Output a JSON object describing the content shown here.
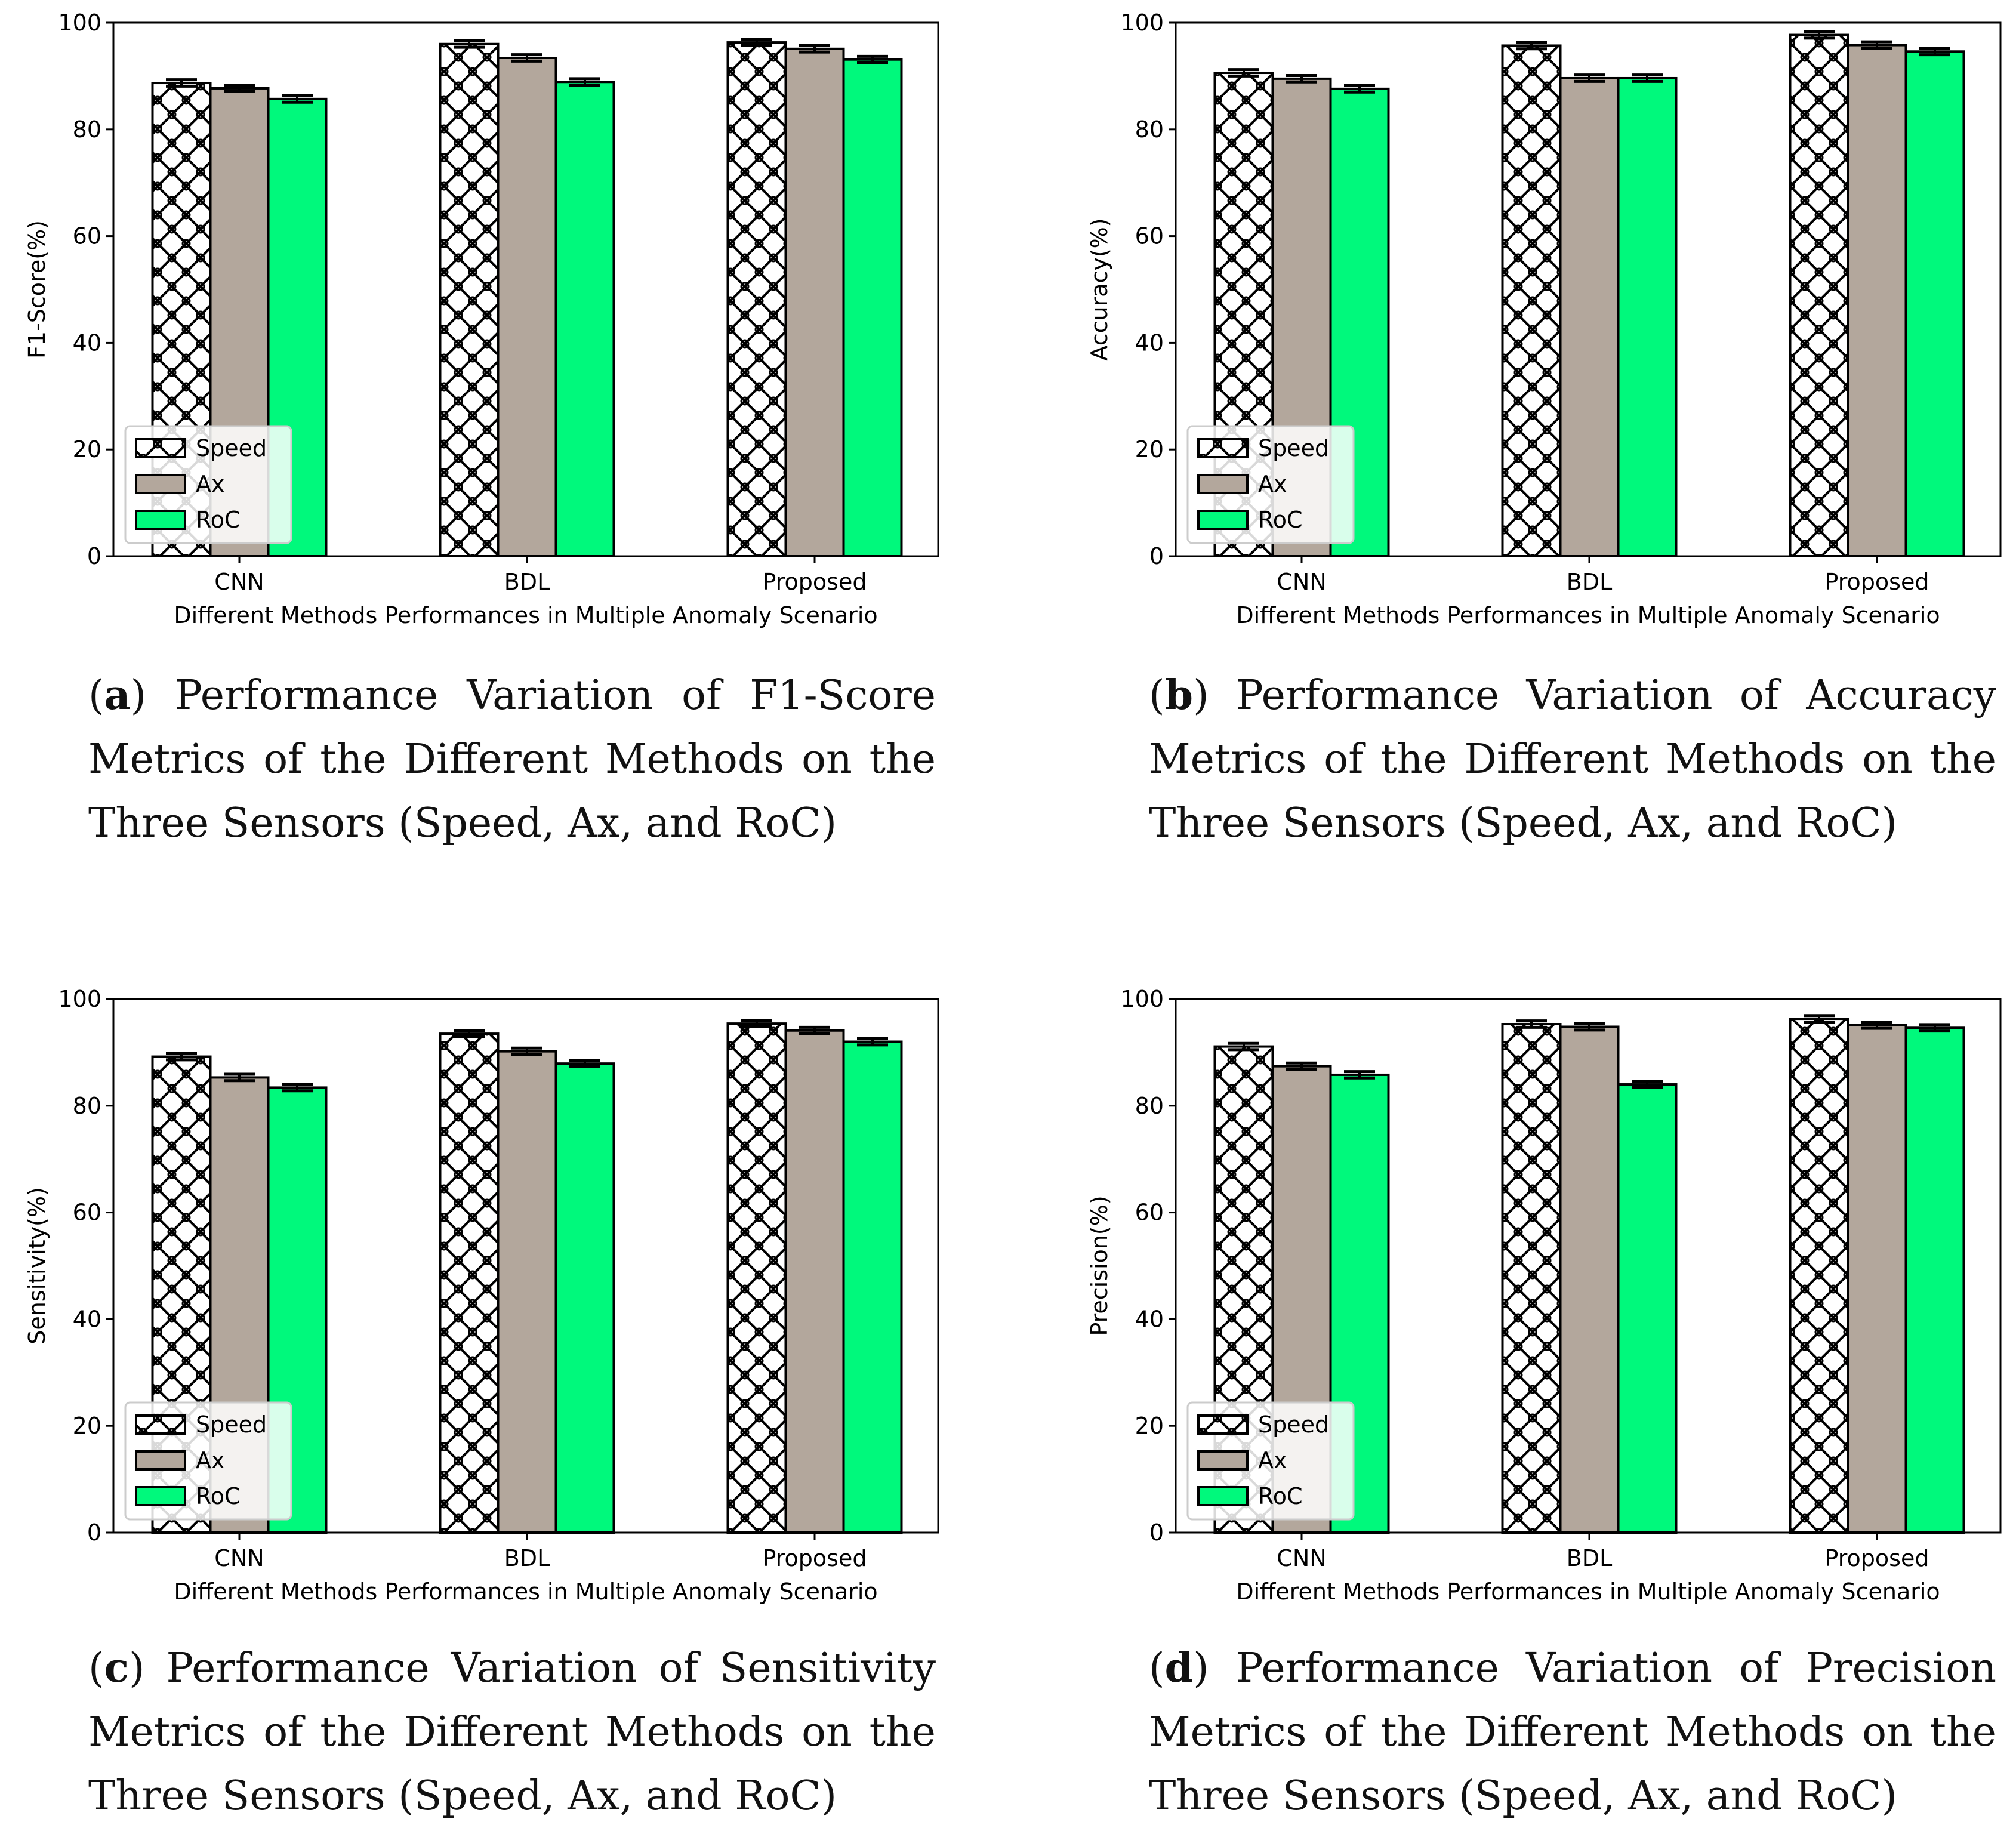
{
  "series_styles": [
    {
      "name": "Speed",
      "color": "#ffffff",
      "pattern": "hatch"
    },
    {
      "name": "Ax",
      "color": "#b3a79c"
    },
    {
      "name": "RoC",
      "color": "#00f97c"
    }
  ],
  "captions": [
    {
      "letter": "a",
      "text": " Performance Variation of F1-Score Metrics of the Different Methods on the Three Sensors (Speed, Ax, and RoC)"
    },
    {
      "letter": "b",
      "text": " Performance Variation of Accuracy Metrics of the Different Methods on the Three Sensors (Speed, Ax, and RoC)"
    },
    {
      "letter": "c",
      "text": " Performance Variation of Sensitivity Metrics of the Different Methods on the Three Sensors (Speed, Ax, and RoC)"
    },
    {
      "letter": "d",
      "text": " Performance Variation of Precision Metrics of the Different Methods on the Three Sensors (Speed, Ax, and RoC)"
    }
  ],
  "chart_data": [
    {
      "type": "bar",
      "title": "",
      "xlabel": "Different Methods Performances in Multiple Anomaly Scenario",
      "ylabel": "F1-Score(%)",
      "categories": [
        "CNN",
        "BDL",
        "Proposed"
      ],
      "ylim": [
        0,
        100
      ],
      "yticks": [
        0,
        20,
        40,
        60,
        80,
        100
      ],
      "legend_position": "lower-left",
      "series": [
        {
          "name": "Speed",
          "values": [
            88.7,
            96.0,
            96.3
          ],
          "errors": [
            0.6,
            0.6,
            0.6
          ]
        },
        {
          "name": "Ax",
          "values": [
            87.7,
            93.4,
            95.1
          ],
          "errors": [
            0.6,
            0.6,
            0.6
          ]
        },
        {
          "name": "RoC",
          "values": [
            85.7,
            88.9,
            93.1
          ],
          "errors": [
            0.6,
            0.6,
            0.6
          ]
        }
      ]
    },
    {
      "type": "bar",
      "title": "",
      "xlabel": "Different Methods Performances in Multiple Anomaly Scenario",
      "ylabel": "Accuracy(%)",
      "categories": [
        "CNN",
        "BDL",
        "Proposed"
      ],
      "ylim": [
        0,
        100
      ],
      "yticks": [
        0,
        20,
        40,
        60,
        80,
        100
      ],
      "legend_position": "lower-left",
      "series": [
        {
          "name": "Speed",
          "values": [
            90.6,
            95.7,
            97.7
          ],
          "errors": [
            0.6,
            0.6,
            0.6
          ]
        },
        {
          "name": "Ax",
          "values": [
            89.5,
            89.6,
            95.8
          ],
          "errors": [
            0.6,
            0.6,
            0.6
          ]
        },
        {
          "name": "RoC",
          "values": [
            87.6,
            89.6,
            94.6
          ],
          "errors": [
            0.6,
            0.6,
            0.6
          ]
        }
      ]
    },
    {
      "type": "bar",
      "title": "",
      "xlabel": "Different Methods Performances in Multiple Anomaly Scenario",
      "ylabel": "Sensitivity(%)",
      "categories": [
        "CNN",
        "BDL",
        "Proposed"
      ],
      "ylim": [
        0,
        100
      ],
      "yticks": [
        0,
        20,
        40,
        60,
        80,
        100
      ],
      "legend_position": "lower-left",
      "series": [
        {
          "name": "Speed",
          "values": [
            89.2,
            93.5,
            95.4
          ],
          "errors": [
            0.6,
            0.6,
            0.6
          ]
        },
        {
          "name": "Ax",
          "values": [
            85.3,
            90.2,
            94.1
          ],
          "errors": [
            0.6,
            0.6,
            0.6
          ]
        },
        {
          "name": "RoC",
          "values": [
            83.4,
            87.9,
            92.0
          ],
          "errors": [
            0.6,
            0.6,
            0.6
          ]
        }
      ]
    },
    {
      "type": "bar",
      "title": "",
      "xlabel": "Different Methods Performances in Multiple Anomaly Scenario",
      "ylabel": "Precision(%)",
      "categories": [
        "CNN",
        "BDL",
        "Proposed"
      ],
      "ylim": [
        0,
        100
      ],
      "yticks": [
        0,
        20,
        40,
        60,
        80,
        100
      ],
      "legend_position": "lower-left",
      "series": [
        {
          "name": "Speed",
          "values": [
            91.1,
            95.3,
            96.3
          ],
          "errors": [
            0.6,
            0.6,
            0.6
          ]
        },
        {
          "name": "Ax",
          "values": [
            87.4,
            94.8,
            95.1
          ],
          "errors": [
            0.6,
            0.6,
            0.6
          ]
        },
        {
          "name": "RoC",
          "values": [
            85.8,
            84.0,
            94.6
          ],
          "errors": [
            0.6,
            0.6,
            0.6
          ]
        }
      ]
    }
  ]
}
